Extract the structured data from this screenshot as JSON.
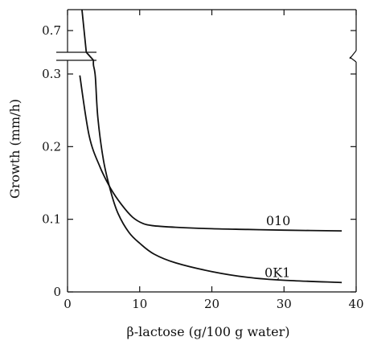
{
  "chart_data": {
    "type": "line",
    "xlabel": "β-lactose (g/100 g water)",
    "ylabel": "Growth (mm/h)",
    "xlim": [
      0,
      40
    ],
    "ylim_lower": [
      0,
      0.32
    ],
    "ylim_upper": [
      0.66,
      0.76
    ],
    "axis_break": "y between 0.3 and 0.7",
    "x_ticks": [
      "0",
      "10",
      "20",
      "30",
      "40"
    ],
    "y_ticks_lower": [
      "0",
      "0.1",
      "0.2",
      "0.3"
    ],
    "y_ticks_upper": [
      "0.7"
    ],
    "series": [
      {
        "name": "010",
        "x": [
          1.7,
          3,
          4.5,
          6,
          7.5,
          9,
          10.5,
          12,
          15,
          20,
          25,
          30,
          38
        ],
        "y": [
          0.298,
          0.215,
          0.172,
          0.142,
          0.12,
          0.103,
          0.094,
          0.091,
          0.089,
          0.087,
          0.086,
          0.085,
          0.084
        ]
      },
      {
        "name": "0Ķ1",
        "x": [
          2,
          2.6,
          3.6,
          3.85,
          4.2,
          5,
          6,
          7,
          8.5,
          10,
          12,
          15,
          20,
          25,
          30,
          38
        ],
        "y": [
          0.76,
          0.69,
          0.312,
          0.296,
          0.24,
          0.18,
          0.138,
          0.108,
          0.082,
          0.067,
          0.052,
          0.04,
          0.028,
          0.02,
          0.016,
          0.013
        ]
      }
    ],
    "grid": false,
    "legend": "curve labels"
  }
}
